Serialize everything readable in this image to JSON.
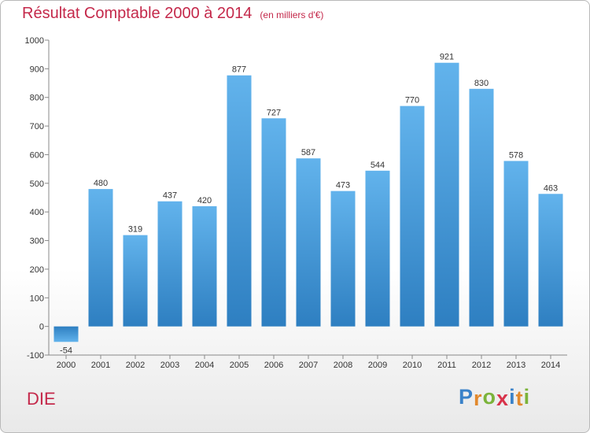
{
  "title": "Résultat Comptable 2000 à 2014",
  "unit": "(en milliers d'€)",
  "commune": "DIE",
  "logo": {
    "letters": [
      {
        "ch": "P",
        "color": "#3a82c9"
      },
      {
        "ch": "r",
        "color": "#e2892d"
      },
      {
        "ch": "o",
        "color": "#7bb33a"
      },
      {
        "ch": "x",
        "color": "#d8334a"
      },
      {
        "ch": "i",
        "color": "#3a82c9"
      },
      {
        "ch": "t",
        "color": "#e2892d"
      },
      {
        "ch": "i",
        "color": "#7bb33a"
      }
    ]
  },
  "colors": {
    "title": "#c4284a",
    "bar_top": "#62b3ec",
    "bar_bottom": "#2e7fc1"
  },
  "chart_data": {
    "type": "bar",
    "title": "Résultat Comptable 2000 à 2014",
    "ylabel": "(en milliers d'€)",
    "xlabel": "",
    "categories": [
      "2000",
      "2001",
      "2002",
      "2003",
      "2004",
      "2005",
      "2006",
      "2007",
      "2008",
      "2009",
      "2010",
      "2011",
      "2012",
      "2013",
      "2014"
    ],
    "values": [
      -54,
      480,
      319,
      437,
      420,
      877,
      727,
      587,
      473,
      544,
      770,
      921,
      830,
      578,
      463
    ],
    "ylim": [
      -100,
      1000
    ],
    "yticks": [
      -100,
      0,
      100,
      200,
      300,
      400,
      500,
      600,
      700,
      800,
      900,
      1000
    ],
    "grid": false
  }
}
